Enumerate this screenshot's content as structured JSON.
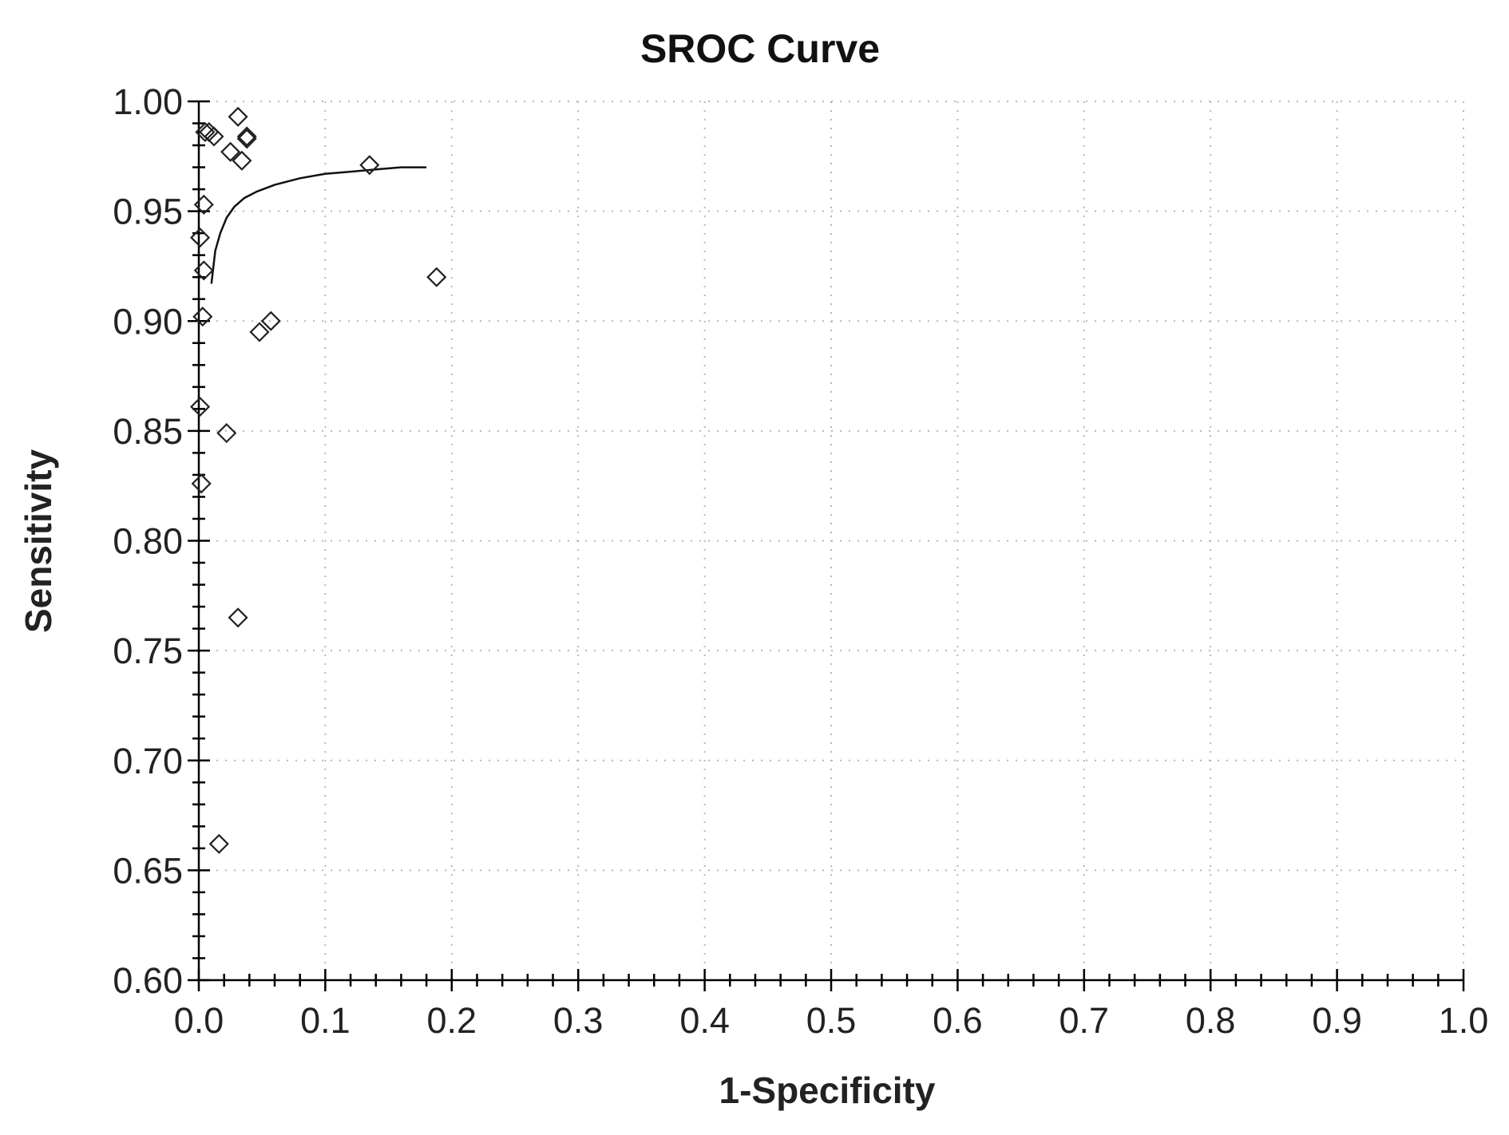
{
  "chart_data": {
    "type": "scatter",
    "title": "SROC Curve",
    "xlabel": "1-Specificity",
    "ylabel": "Sensitivity",
    "xlim": [
      0.0,
      1.0
    ],
    "ylim": [
      0.6,
      1.0
    ],
    "x_ticks": [
      "0.0",
      "0.1",
      "0.2",
      "0.3",
      "0.4",
      "0.5",
      "0.6",
      "0.7",
      "0.8",
      "0.9",
      "1.0"
    ],
    "y_ticks": [
      "0.60",
      "0.65",
      "0.70",
      "0.75",
      "0.80",
      "0.85",
      "0.90",
      "0.95",
      "1.00"
    ],
    "grid": true,
    "legend": "none",
    "series": [
      {
        "marker": "diamond",
        "points": [
          {
            "x": 0.005,
            "y": 0.986
          },
          {
            "x": 0.008,
            "y": 0.986
          },
          {
            "x": 0.012,
            "y": 0.984
          },
          {
            "x": 0.031,
            "y": 0.993
          },
          {
            "x": 0.038,
            "y": 0.984
          },
          {
            "x": 0.038,
            "y": 0.983
          },
          {
            "x": 0.025,
            "y": 0.977
          },
          {
            "x": 0.034,
            "y": 0.973
          },
          {
            "x": 0.135,
            "y": 0.971
          },
          {
            "x": 0.004,
            "y": 0.953
          },
          {
            "x": 0.001,
            "y": 0.938
          },
          {
            "x": 0.004,
            "y": 0.923
          },
          {
            "x": 0.188,
            "y": 0.92
          },
          {
            "x": 0.003,
            "y": 0.902
          },
          {
            "x": 0.057,
            "y": 0.9
          },
          {
            "x": 0.048,
            "y": 0.895
          },
          {
            "x": 0.001,
            "y": 0.861
          },
          {
            "x": 0.022,
            "y": 0.849
          },
          {
            "x": 0.002,
            "y": 0.826
          },
          {
            "x": 0.031,
            "y": 0.765
          },
          {
            "x": 0.016,
            "y": 0.662
          }
        ]
      },
      {
        "type": "line",
        "points": [
          {
            "x": 0.01,
            "y": 0.917
          },
          {
            "x": 0.013,
            "y": 0.932
          },
          {
            "x": 0.017,
            "y": 0.94
          },
          {
            "x": 0.022,
            "y": 0.947
          },
          {
            "x": 0.028,
            "y": 0.952
          },
          {
            "x": 0.036,
            "y": 0.956
          },
          {
            "x": 0.046,
            "y": 0.959
          },
          {
            "x": 0.06,
            "y": 0.962
          },
          {
            "x": 0.08,
            "y": 0.965
          },
          {
            "x": 0.1,
            "y": 0.967
          },
          {
            "x": 0.12,
            "y": 0.968
          },
          {
            "x": 0.14,
            "y": 0.969
          },
          {
            "x": 0.16,
            "y": 0.97
          },
          {
            "x": 0.18,
            "y": 0.97
          }
        ]
      }
    ]
  },
  "colors": {
    "background": "#ffffff",
    "axis": "#000000",
    "grid": "#b8b8b8",
    "marker": "#222222"
  }
}
